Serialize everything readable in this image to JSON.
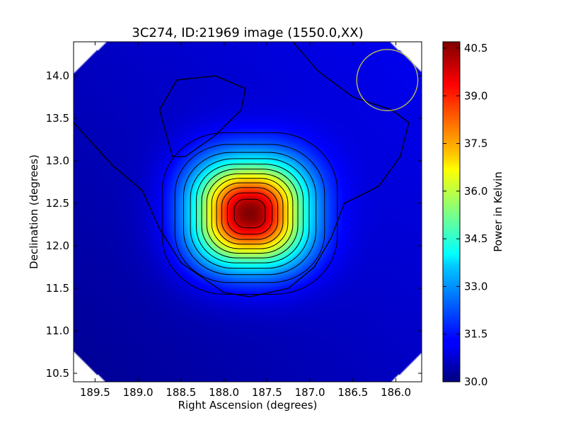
{
  "chart_data": {
    "type": "heatmap",
    "title": "3C274, ID:21969 image (1550.0,XX)",
    "xlabel": "Right Ascension (degrees)",
    "ylabel": "Declination (degrees)",
    "colorbar_label": "Power in Kelvin",
    "xlim": [
      189.75,
      185.7
    ],
    "ylim": [
      10.4,
      14.4
    ],
    "x_ticks": [
      189.5,
      189.0,
      188.5,
      188.0,
      187.5,
      187.0,
      186.5,
      186.0
    ],
    "x_tick_labels": [
      "189.5",
      "189.0",
      "188.5",
      "188.0",
      "187.5",
      "187.0",
      "186.5",
      "186.0"
    ],
    "y_ticks": [
      10.5,
      11.0,
      11.5,
      12.0,
      12.5,
      13.0,
      13.5,
      14.0
    ],
    "y_tick_labels": [
      "10.5",
      "11.0",
      "11.5",
      "12.0",
      "12.5",
      "13.0",
      "13.5",
      "14.0"
    ],
    "colorbar_range": [
      30.0,
      40.7
    ],
    "colorbar_ticks": [
      30.0,
      31.5,
      33.0,
      34.5,
      36.0,
      37.5,
      39.0,
      40.5
    ],
    "colorbar_tick_labels": [
      "30.0",
      "31.5",
      "33.0",
      "34.5",
      "36.0",
      "37.5",
      "39.0",
      "40.5"
    ],
    "colormap": "jet",
    "peak": {
      "ra": 187.7,
      "dec": 12.38,
      "value": 40.6
    },
    "background_level": 30.6,
    "source_shape": {
      "sigma_ra_deg": 0.45,
      "sigma_dec_deg": 0.42
    },
    "beam_circle": {
      "ra": 186.1,
      "dec": 13.95,
      "radius_deg": 0.36,
      "color": "#c8c84a"
    },
    "contour_count": 12,
    "contour_color": "#000000"
  }
}
